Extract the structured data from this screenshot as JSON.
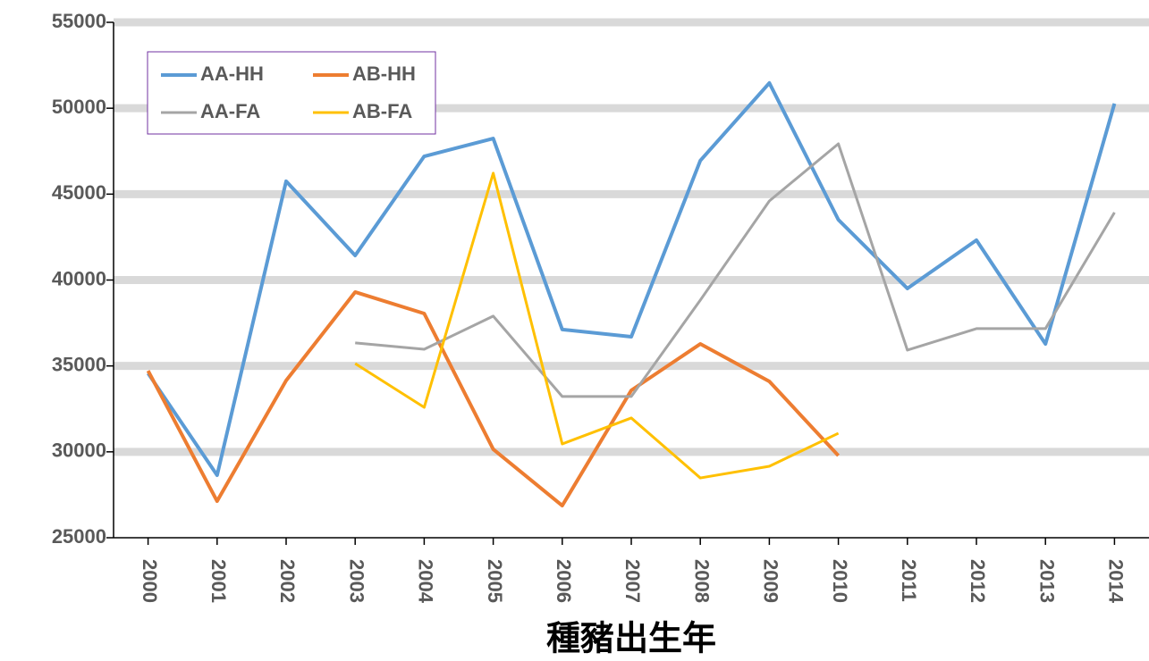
{
  "chart_data": {
    "type": "line",
    "x_label": "種豬出生年",
    "categories": [
      "2000",
      "2001",
      "2002",
      "2003",
      "2004",
      "2005",
      "2006",
      "2007",
      "2008",
      "2009",
      "2010",
      "2011",
      "2012",
      "2013",
      "2014"
    ],
    "ylim": [
      25000,
      55000
    ],
    "yticks": [
      25000,
      30000,
      35000,
      40000,
      45000,
      50000,
      55000
    ],
    "grid": true,
    "legend": "upper left",
    "series": [
      {
        "name": "AA-HH",
        "color": "#5b9bd5",
        "width": 4,
        "values": [
          34570,
          28640,
          45750,
          41430,
          47200,
          48240,
          37120,
          36700,
          46950,
          51470,
          43510,
          39510,
          42320,
          36280,
          50270
        ]
      },
      {
        "name": "AB-HH",
        "color": "#ed7d31",
        "width": 4,
        "values": [
          34720,
          27130,
          34150,
          39300,
          38050,
          30150,
          26870,
          33580,
          36280,
          34100,
          29780,
          null,
          null,
          null,
          null
        ]
      },
      {
        "name": "AA-FA",
        "color": "#a5a5a5",
        "width": 3,
        "values": [
          null,
          null,
          null,
          36340,
          35970,
          37900,
          33220,
          33220,
          38830,
          44600,
          47930,
          35920,
          37170,
          37170,
          43930
        ]
      },
      {
        "name": "AB-FA",
        "color": "#ffc000",
        "width": 3,
        "values": [
          null,
          null,
          null,
          35140,
          32590,
          46220,
          30460,
          31970,
          28480,
          29160,
          31080,
          null,
          null,
          null,
          null
        ]
      }
    ]
  }
}
